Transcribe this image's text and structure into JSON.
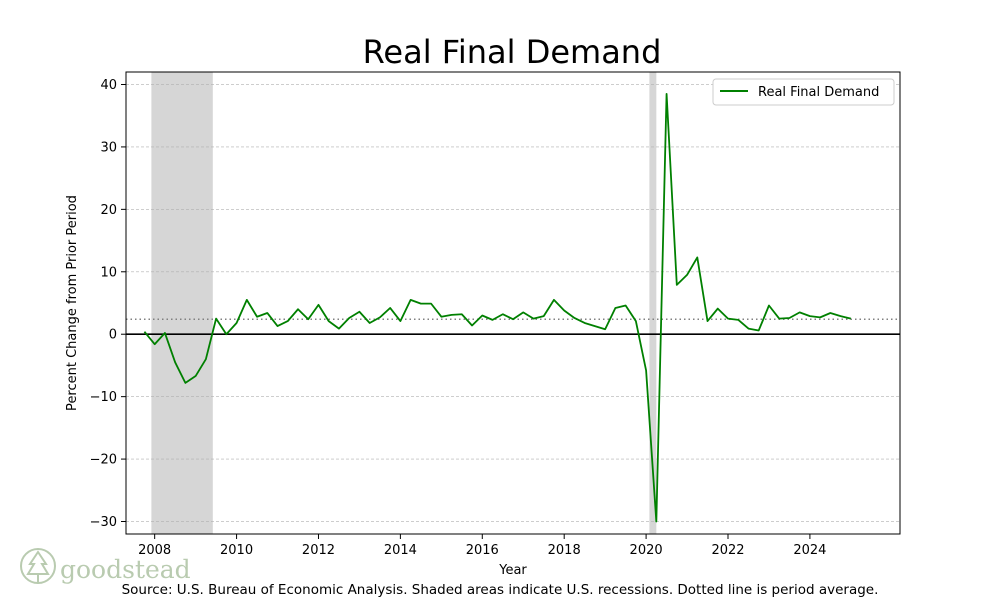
{
  "chart_data": {
    "type": "line",
    "title": "Real Final Demand",
    "xlabel": "Year",
    "ylabel": "Percent Change from Prior Period",
    "xlim": [
      2007.3,
      2026.2
    ],
    "ylim": [
      -32,
      42
    ],
    "xticks": [
      2008,
      2010,
      2012,
      2014,
      2016,
      2018,
      2020,
      2022,
      2024
    ],
    "yticks": [
      -30,
      -20,
      -10,
      0,
      10,
      20,
      30,
      40
    ],
    "xtick_labels": [
      "2008",
      "2010",
      "2012",
      "2014",
      "2016",
      "2018",
      "2020",
      "2022",
      "2024"
    ],
    "ytick_labels": [
      "−30",
      "−20",
      "−10",
      "0",
      "10",
      "20",
      "30",
      "40"
    ],
    "grid": true,
    "legend_position": "top-right",
    "average": 2.4,
    "recessions": [
      [
        2007.92,
        2009.42
      ],
      [
        2020.08,
        2020.25
      ]
    ],
    "series": [
      {
        "name": "Real Final Demand",
        "color": "#008000",
        "x": [
          2007.75,
          2008.0,
          2008.25,
          2008.5,
          2008.75,
          2009.0,
          2009.25,
          2009.5,
          2009.75,
          2010.0,
          2010.25,
          2010.5,
          2010.75,
          2011.0,
          2011.25,
          2011.5,
          2011.75,
          2012.0,
          2012.25,
          2012.5,
          2012.75,
          2013.0,
          2013.25,
          2013.5,
          2013.75,
          2014.0,
          2014.25,
          2014.5,
          2014.75,
          2015.0,
          2015.25,
          2015.5,
          2015.75,
          2016.0,
          2016.25,
          2016.5,
          2016.75,
          2017.0,
          2017.25,
          2017.5,
          2017.75,
          2018.0,
          2018.25,
          2018.5,
          2018.75,
          2019.0,
          2019.25,
          2019.5,
          2019.75,
          2020.0,
          2020.25,
          2020.5,
          2020.75,
          2021.0,
          2021.25,
          2021.5,
          2021.75,
          2022.0,
          2022.25,
          2022.5,
          2022.75,
          2023.0,
          2023.25,
          2023.5,
          2023.75,
          2024.0,
          2024.25,
          2024.5,
          2024.75,
          2025.0
        ],
        "values": [
          0.4,
          -1.6,
          0.2,
          -4.5,
          -7.8,
          -6.7,
          -4.0,
          2.5,
          0.0,
          1.8,
          5.5,
          2.8,
          3.4,
          1.3,
          2.1,
          4.0,
          2.4,
          4.7,
          2.1,
          0.9,
          2.6,
          3.6,
          1.8,
          2.7,
          4.2,
          2.1,
          5.5,
          4.9,
          4.9,
          2.8,
          3.1,
          3.2,
          1.4,
          3.0,
          2.3,
          3.2,
          2.4,
          3.5,
          2.5,
          2.9,
          5.5,
          3.8,
          2.6,
          1.8,
          1.3,
          0.8,
          4.2,
          4.6,
          2.1,
          -5.8,
          -30.0,
          38.5,
          7.9,
          9.5,
          12.3,
          2.1,
          4.1,
          2.5,
          2.3,
          0.9,
          0.6,
          4.6,
          2.5,
          2.6,
          3.5,
          2.9,
          2.7,
          3.4,
          2.9,
          2.5
        ]
      }
    ]
  },
  "source_text": "Source: U.S. Bureau of Economic Analysis. Shaded areas indicate U.S. recessions. Dotted line is period average.",
  "logo": {
    "text": "goodstead",
    "icon": "tree-icon",
    "color": "#b9cbb0"
  }
}
